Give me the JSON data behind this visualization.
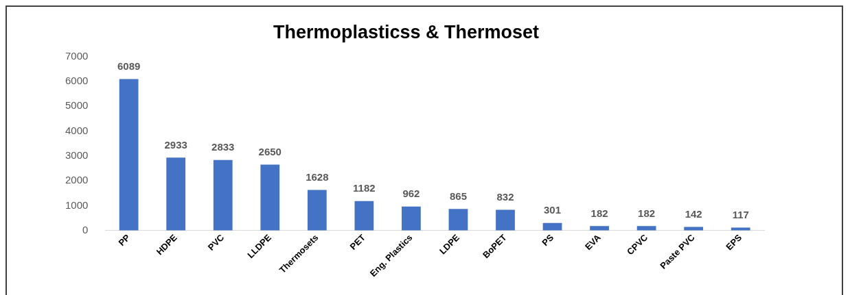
{
  "chart_data": {
    "type": "bar",
    "title": "Thermoplasticss & Thermoset",
    "categories": [
      "PP",
      "HDPE",
      "PVC",
      "LLDPE",
      "Thermosets",
      "PET",
      "Eng. Plastics",
      "LDPE",
      "BoPET",
      "PS",
      "EVA",
      "CPVC",
      "Paste PVC",
      "EPS"
    ],
    "values": [
      6089,
      2933,
      2833,
      2650,
      1628,
      1182,
      962,
      865,
      832,
      301,
      182,
      182,
      142,
      117
    ],
    "color": "#4472c4",
    "ylim": [
      0,
      7000
    ],
    "yticks": [
      0,
      1000,
      2000,
      3000,
      4000,
      5000,
      6000,
      7000
    ],
    "grid": false,
    "legend": false,
    "data_labels": true
  }
}
